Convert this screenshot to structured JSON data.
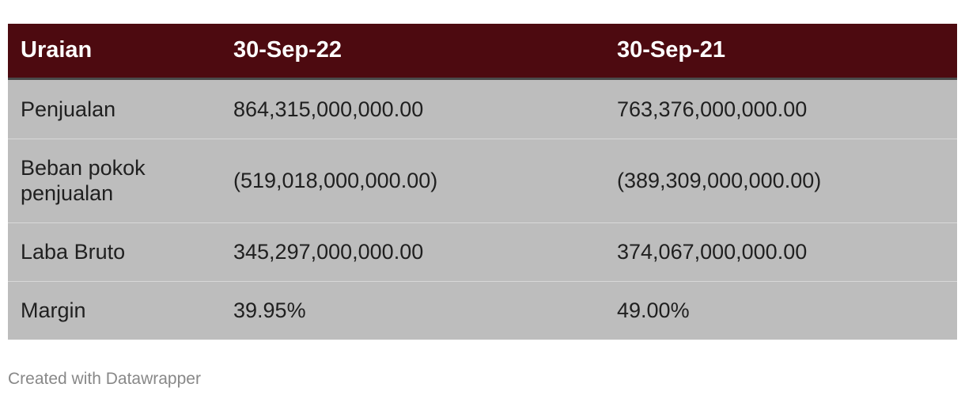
{
  "chart_data": {
    "type": "table",
    "columns": [
      "Uraian",
      "30-Sep-22",
      "30-Sep-21"
    ],
    "rows": [
      [
        "Penjualan",
        "864,315,000,000.00",
        "763,376,000,000.00"
      ],
      [
        "Beban pokok penjualan",
        "(519,018,000,000.00)",
        "(389,309,000,000.00)"
      ],
      [
        "Laba Bruto",
        "345,297,000,000.00",
        "374,067,000,000.00"
      ],
      [
        "Margin",
        "39.95%",
        "49.00%"
      ]
    ]
  },
  "colors": {
    "header_background": "#4d0a10",
    "row_background": "#bdbdbd"
  },
  "footer": {
    "credit": "Created with Datawrapper"
  }
}
